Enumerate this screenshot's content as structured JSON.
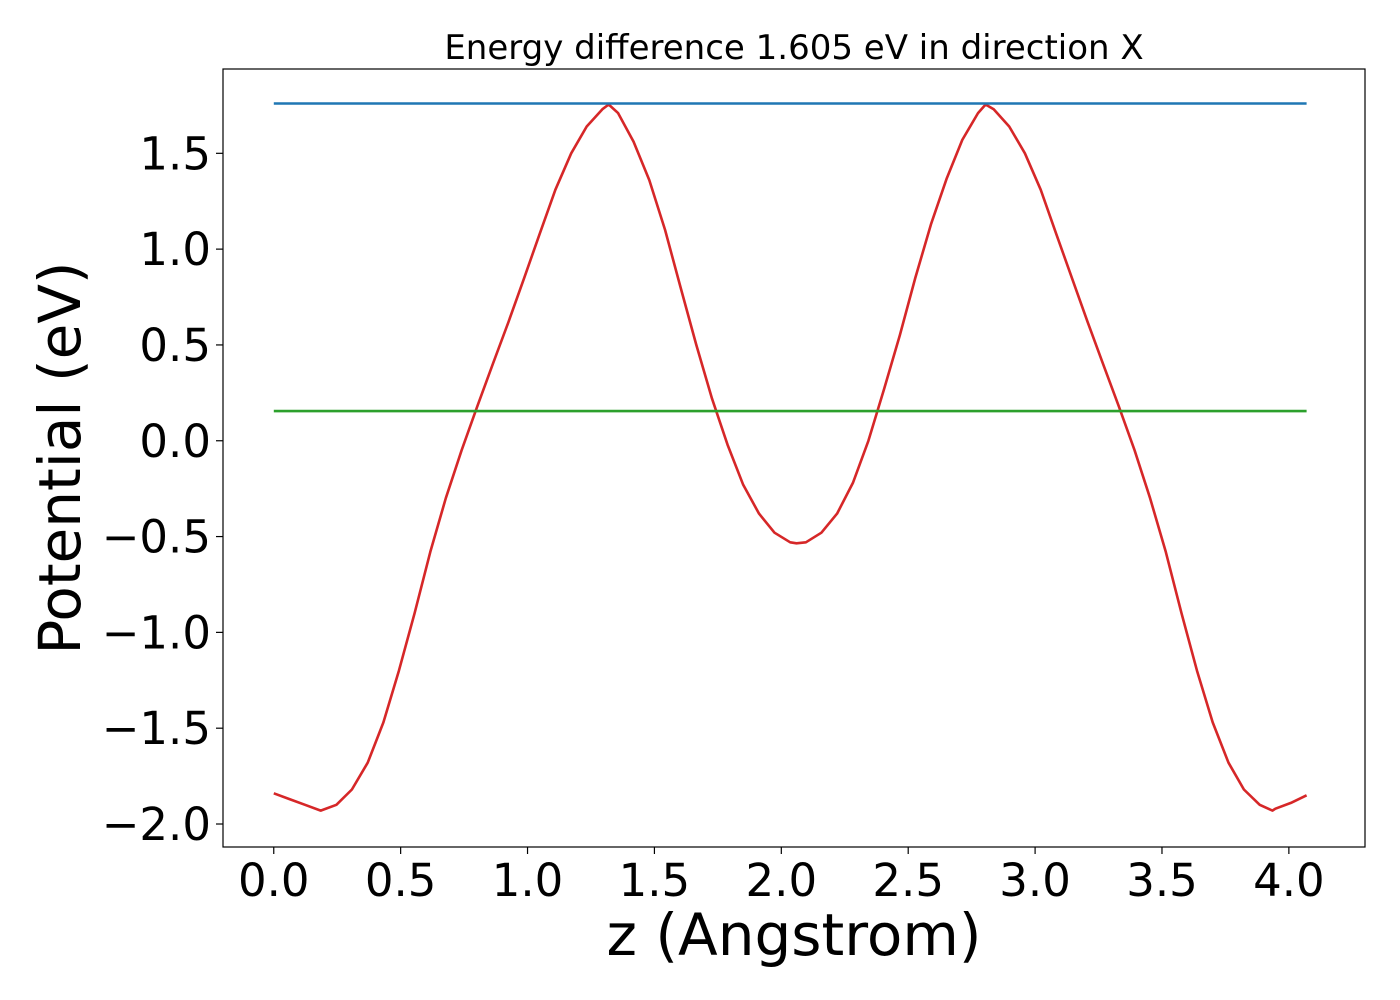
{
  "chart_data": {
    "type": "line",
    "title": "Energy difference 1.605 eV in direction X",
    "xlabel": "z (Angstrom)",
    "ylabel": "Potential (eV)",
    "xlim": [
      -0.2,
      4.3
    ],
    "ylim": [
      -2.12,
      1.94
    ],
    "xticks": [
      0.0,
      0.5,
      1.0,
      1.5,
      2.0,
      2.5,
      3.0,
      3.5,
      4.0
    ],
    "xtick_labels": [
      "0.0",
      "0.5",
      "1.0",
      "1.5",
      "2.0",
      "2.5",
      "3.0",
      "3.5",
      "4.0"
    ],
    "yticks": [
      -2.0,
      -1.5,
      -1.0,
      -0.5,
      0.0,
      0.5,
      1.0,
      1.5
    ],
    "ytick_labels": [
      "−2.0",
      "−1.5",
      "−1.0",
      "−0.5",
      "0.0",
      "0.5",
      "1.0",
      "1.5"
    ],
    "grid": false,
    "series": [
      {
        "color": "#d62728",
        "x": [
          0.0,
          0.062,
          0.123,
          0.185,
          0.247,
          0.308,
          0.37,
          0.432,
          0.493,
          0.555,
          0.617,
          0.678,
          0.74,
          0.802,
          0.863,
          0.925,
          0.987,
          1.048,
          1.11,
          1.172,
          1.233,
          1.295,
          1.32,
          1.357,
          1.418,
          1.48,
          1.542,
          1.603,
          1.665,
          1.727,
          1.788,
          1.85,
          1.912,
          1.973,
          2.035,
          2.06,
          2.097,
          2.158,
          2.22,
          2.282,
          2.343,
          2.405,
          2.467,
          2.528,
          2.59,
          2.652,
          2.713,
          2.775,
          2.805,
          2.837,
          2.898,
          2.96,
          3.022,
          3.083,
          3.145,
          3.207,
          3.268,
          3.33,
          3.392,
          3.453,
          3.515,
          3.577,
          3.638,
          3.7,
          3.762,
          3.823,
          3.885,
          3.935,
          3.947,
          4.008,
          4.07
        ],
        "y": [
          -1.84,
          -1.87,
          -1.9,
          -1.93,
          -1.9,
          -1.82,
          -1.68,
          -1.47,
          -1.2,
          -0.9,
          -0.58,
          -0.3,
          -0.05,
          0.18,
          0.4,
          0.62,
          0.85,
          1.08,
          1.31,
          1.5,
          1.64,
          1.73,
          1.755,
          1.71,
          1.56,
          1.36,
          1.1,
          0.8,
          0.5,
          0.22,
          -0.02,
          -0.23,
          -0.38,
          -0.48,
          -0.53,
          -0.535,
          -0.53,
          -0.48,
          -0.38,
          -0.22,
          0.0,
          0.27,
          0.55,
          0.85,
          1.13,
          1.37,
          1.57,
          1.71,
          1.755,
          1.73,
          1.64,
          1.5,
          1.31,
          1.08,
          0.85,
          0.62,
          0.4,
          0.18,
          -0.05,
          -0.3,
          -0.58,
          -0.9,
          -1.2,
          -1.47,
          -1.68,
          -1.82,
          -1.9,
          -1.93,
          -1.92,
          -1.89,
          -1.85
        ]
      },
      {
        "color": "#1f77b4",
        "x": [
          0.0,
          4.07
        ],
        "y": [
          1.76,
          1.76
        ]
      },
      {
        "color": "#2ca02c",
        "x": [
          0.0,
          4.07
        ],
        "y": [
          0.155,
          0.155
        ]
      }
    ]
  }
}
